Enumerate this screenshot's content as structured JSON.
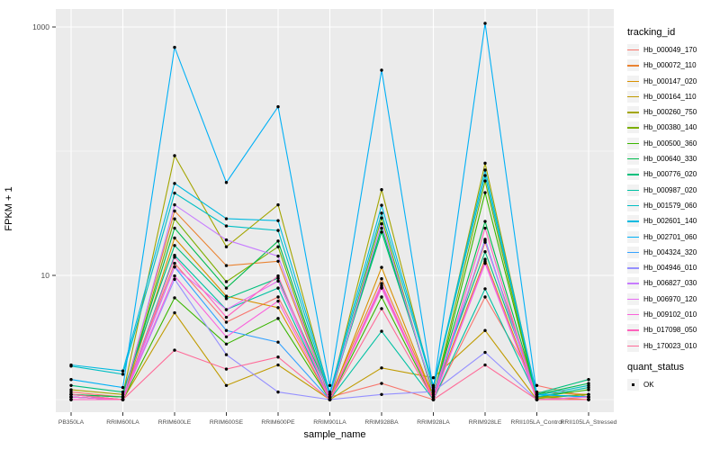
{
  "figure": {
    "x_axis_title": "sample_name",
    "y_axis_title": "FPKM + 1",
    "legend_title": "tracking_id",
    "quant_legend_title": "quant_status",
    "quant_legend_item": "OK"
  },
  "chart_data": {
    "type": "line",
    "title": "",
    "xlabel": "sample_name",
    "ylabel": "FPKM + 1",
    "y_scale": "log10",
    "ylim": [
      0.9,
      1200
    ],
    "grid": "on",
    "legend_position": "right",
    "panel_background": "#EBEBEB",
    "gridline_color": "#FFFFFF",
    "point_color": "#000000",
    "axis_text_color": "#4D4D4D",
    "y_major_ticks": [
      {
        "value": 1000,
        "label": "1000"
      },
      {
        "value": 10,
        "label": "10"
      }
    ],
    "y_minor_ticks": [
      100,
      1
    ],
    "x_categories": [
      "PB350LA",
      "RRIM600LA",
      "RRIM600LE",
      "RRIM600SE",
      "RRIM600PE",
      "RRIM901LA",
      "RRIM928BA",
      "RRIM928LA",
      "RRIM928LE",
      "RRII105LA_Control",
      "RRII105LA_Stressed"
    ],
    "quant_status": "OK",
    "series": [
      {
        "tracking_id": "Hb_000049_170",
        "color": "#F8766D",
        "values": [
          1.15,
          1.05,
          12.5,
          4.2,
          6.7,
          1.05,
          1.35,
          1.0,
          6.7,
          1.3,
          1.05
        ]
      },
      {
        "tracking_id": "Hb_000072_110",
        "color": "#EA8331",
        "values": [
          1.1,
          1.05,
          33,
          12,
          13,
          1.05,
          9.4,
          1.05,
          18.5,
          1.15,
          1.1
        ]
      },
      {
        "tracking_id": "Hb_000147_020",
        "color": "#D89000",
        "values": [
          1.05,
          1.0,
          20,
          6.8,
          5.5,
          1.0,
          11.6,
          1.05,
          13.5,
          1.05,
          1.0
        ]
      },
      {
        "tracking_id": "Hb_000164_110",
        "color": "#C09B00",
        "values": [
          1.1,
          1.0,
          5.0,
          1.3,
          1.9,
          1.0,
          1.8,
          1.5,
          3.6,
          1.0,
          1.05
        ]
      },
      {
        "tracking_id": "Hb_000260_750",
        "color": "#A3A500",
        "values": [
          1.2,
          1.1,
          92,
          17,
          37,
          1.1,
          49,
          1.2,
          80,
          1.05,
          1.1
        ]
      },
      {
        "tracking_id": "Hb_000380_140",
        "color": "#7CAE00",
        "values": [
          1.0,
          1.0,
          28.5,
          8.9,
          17,
          1.0,
          29,
          1.05,
          57.6,
          1.02,
          1.1
        ]
      },
      {
        "tracking_id": "Hb_000500_360",
        "color": "#39B600",
        "values": [
          1.05,
          1.0,
          6.6,
          2.8,
          4.5,
          1.0,
          6.7,
          1.0,
          46.4,
          1.05,
          1.2
        ]
      },
      {
        "tracking_id": "Hb_000640_330",
        "color": "#00BB4E",
        "values": [
          1.1,
          1.05,
          24,
          7.9,
          18.9,
          1.05,
          24,
          1.1,
          27.2,
          1.1,
          1.35
        ]
      },
      {
        "tracking_id": "Hb_000776_020",
        "color": "#00BF7D",
        "values": [
          1.3,
          1.15,
          17.4,
          6.5,
          9.5,
          1.1,
          22.3,
          1.15,
          15.5,
          1.12,
          1.45
        ]
      },
      {
        "tracking_id": "Hb_000987_020",
        "color": "#00C1A3",
        "values": [
          1.05,
          1.0,
          14.5,
          5.3,
          7.9,
          1.0,
          3.55,
          1.0,
          7.8,
          1.05,
          1.25
        ]
      },
      {
        "tracking_id": "Hb_001579_060",
        "color": "#00BFC4",
        "values": [
          1.86,
          1.6,
          46,
          25,
          23,
          1.1,
          31.7,
          1.25,
          63.7,
          1.08,
          1.3
        ]
      },
      {
        "tracking_id": "Hb_002601_140",
        "color": "#00BAE0",
        "values": [
          1.9,
          1.7,
          55,
          28.6,
          27.6,
          1.15,
          36.7,
          1.3,
          70.5,
          1.1,
          1.05
        ]
      },
      {
        "tracking_id": "Hb_002701_060",
        "color": "#00B0F6",
        "values": [
          1.45,
          1.25,
          686,
          56,
          228,
          1.3,
          449,
          1.2,
          1070,
          1.1,
          1.05
        ]
      },
      {
        "tracking_id": "Hb_004324_320",
        "color": "#35A2FF",
        "values": [
          1.1,
          1.0,
          11.7,
          3.6,
          2.9,
          1.0,
          8.0,
          1.0,
          19.5,
          1.0,
          1.0
        ]
      },
      {
        "tracking_id": "Hb_004946_010",
        "color": "#9590FF",
        "values": [
          1.05,
          1.0,
          9.3,
          2.3,
          1.15,
          1.0,
          1.1,
          1.16,
          2.4,
          1.0,
          1.0
        ]
      },
      {
        "tracking_id": "Hb_006827_030",
        "color": "#C77CFF",
        "values": [
          1.0,
          1.0,
          37,
          19.3,
          14.3,
          1.05,
          26,
          1.1,
          19.0,
          1.0,
          1.0
        ]
      },
      {
        "tracking_id": "Hb_006970_120",
        "color": "#E76BF3",
        "values": [
          1.0,
          1.0,
          11.7,
          5.3,
          9.0,
          1.0,
          8.6,
          1.0,
          13.0,
          1.0,
          1.05
        ]
      },
      {
        "tracking_id": "Hb_009102_010",
        "color": "#FA62DB",
        "values": [
          1.05,
          1.0,
          9.9,
          3.2,
          6.2,
          1.0,
          7.9,
          1.0,
          12.5,
          1.0,
          1.0
        ]
      },
      {
        "tracking_id": "Hb_017098_050",
        "color": "#FF62BC",
        "values": [
          1.0,
          1.0,
          14.0,
          4.6,
          9.9,
          1.0,
          8.3,
          1.0,
          24.0,
          1.0,
          1.0
        ]
      },
      {
        "tracking_id": "Hb_170023_010",
        "color": "#FF6A98",
        "values": [
          1.1,
          1.0,
          2.5,
          1.76,
          2.2,
          1.0,
          5.4,
          1.0,
          1.9,
          1.0,
          1.0
        ]
      }
    ]
  }
}
